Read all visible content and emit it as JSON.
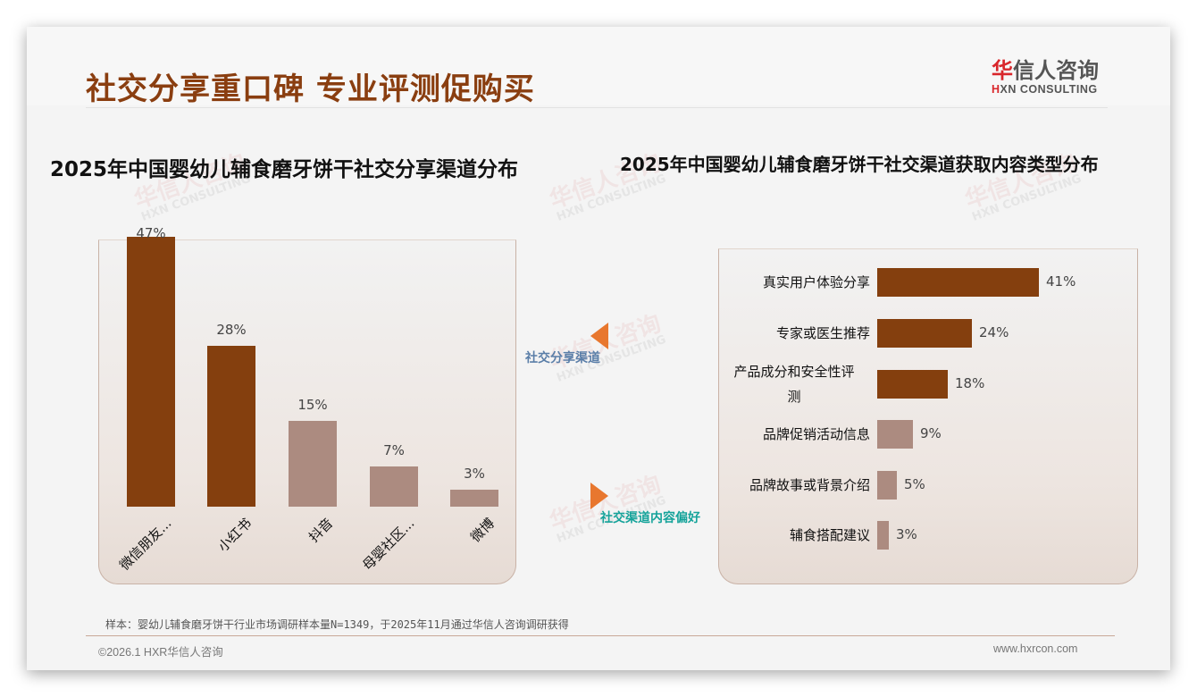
{
  "header": {
    "title": "社交分享重口碑 专业评测促购买",
    "logo": {
      "cn_accent": "华",
      "cn_rest": "信人咨询",
      "en_accent": "H",
      "en_rest": "XN CONSULTING"
    }
  },
  "watermark": {
    "cn": "华信人咨询",
    "en": "HXN CONSULTING"
  },
  "nav": {
    "prev_label": "社交分享渠道",
    "next_label": "社交渠道内容偏好",
    "arrow_color": "#e8772e"
  },
  "colors": {
    "primary_bar": "#843f0e",
    "secondary_bar": "#ac8b80",
    "title": "#8a3e10"
  },
  "chart_data": [
    {
      "type": "bar",
      "orientation": "vertical",
      "title": "2025年中国婴幼儿辅食磨牙饼干社交分享渠道分布",
      "categories": [
        "微信朋友...",
        "小红书",
        "抖音",
        "母婴社区...",
        "微博"
      ],
      "values": [
        47,
        28,
        15,
        7,
        3
      ],
      "value_labels": [
        "47%",
        "28%",
        "15%",
        "7%",
        "3%"
      ],
      "highlight": [
        true,
        true,
        false,
        false,
        false
      ],
      "xlabel": "",
      "ylabel": "",
      "ylim": [
        0,
        47
      ],
      "grid": false,
      "legend": null
    },
    {
      "type": "bar",
      "orientation": "horizontal",
      "title": "2025年中国婴幼儿辅食磨牙饼干社交渠道获取内容类型分布",
      "categories": [
        "真实用户体验分享",
        "专家或医生推荐",
        "产品成分和安全性评测",
        "品牌促销活动信息",
        "品牌故事或背景介绍",
        "辅食搭配建议"
      ],
      "category_lines": [
        [
          "真实用户体验分享"
        ],
        [
          "专家或医生推荐"
        ],
        [
          "产品成分和安全性评",
          "测"
        ],
        [
          "品牌促销活动信息"
        ],
        [
          "品牌故事或背景介绍"
        ],
        [
          "辅食搭配建议"
        ]
      ],
      "values": [
        41,
        24,
        18,
        9,
        5,
        3
      ],
      "value_labels": [
        "41%",
        "24%",
        "18%",
        "9%",
        "5%",
        "3%"
      ],
      "highlight": [
        true,
        true,
        true,
        false,
        false,
        false
      ],
      "xlabel": "",
      "ylabel": "",
      "xlim": [
        0,
        41
      ],
      "grid": false,
      "legend": null
    }
  ],
  "footer": {
    "note": "样本：婴幼儿辅食磨牙饼干行业市场调研样本量N=1349，于2025年11月通过华信人咨询调研获得",
    "copyright": "©2026.1 HXR华信人咨询",
    "website": "www.hxrcon.com"
  }
}
